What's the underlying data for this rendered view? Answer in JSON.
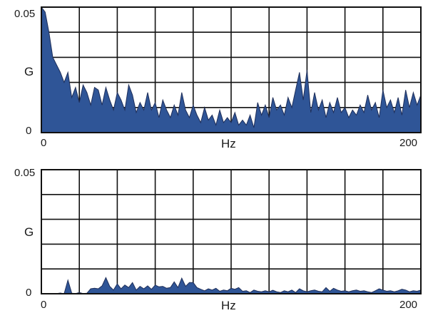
{
  "chart_data": [
    {
      "type": "area",
      "xlabel": "Hz",
      "ylabel": "G",
      "xlim": [
        0,
        200
      ],
      "ylim": [
        0,
        0.05
      ],
      "x_tick_labels": [
        "0",
        "200"
      ],
      "y_tick_labels": [
        "0",
        "0.05"
      ],
      "grid": true,
      "fill_color": "#2f5597",
      "line_color": "#1f2f5a",
      "x": [
        0,
        2,
        4,
        6,
        8,
        10,
        12,
        14,
        16,
        18,
        20,
        22,
        24,
        26,
        28,
        30,
        32,
        34,
        36,
        38,
        40,
        42,
        44,
        46,
        48,
        50,
        52,
        54,
        56,
        58,
        60,
        62,
        64,
        66,
        68,
        70,
        72,
        74,
        76,
        78,
        80,
        82,
        84,
        86,
        88,
        90,
        92,
        94,
        96,
        98,
        100,
        102,
        104,
        106,
        108,
        110,
        112,
        114,
        116,
        118,
        120,
        122,
        124,
        126,
        128,
        130,
        132,
        134,
        136,
        138,
        140,
        142,
        144,
        146,
        148,
        150,
        152,
        154,
        156,
        158,
        160,
        162,
        164,
        166,
        168,
        170,
        172,
        174,
        176,
        178,
        180,
        182,
        184,
        186,
        188,
        190,
        192,
        194,
        196,
        198,
        200
      ],
      "y": [
        0.05,
        0.048,
        0.04,
        0.03,
        0.027,
        0.024,
        0.02,
        0.024,
        0.014,
        0.018,
        0.012,
        0.019,
        0.016,
        0.011,
        0.018,
        0.017,
        0.011,
        0.018,
        0.013,
        0.009,
        0.016,
        0.013,
        0.009,
        0.019,
        0.015,
        0.008,
        0.012,
        0.009,
        0.016,
        0.009,
        0.012,
        0.006,
        0.013,
        0.009,
        0.006,
        0.011,
        0.007,
        0.016,
        0.009,
        0.006,
        0.011,
        0.007,
        0.004,
        0.01,
        0.005,
        0.007,
        0.003,
        0.009,
        0.004,
        0.006,
        0.004,
        0.008,
        0.003,
        0.005,
        0.003,
        0.007,
        0.002,
        0.012,
        0.007,
        0.011,
        0.006,
        0.014,
        0.009,
        0.011,
        0.007,
        0.014,
        0.01,
        0.017,
        0.024,
        0.013,
        0.025,
        0.008,
        0.016,
        0.009,
        0.013,
        0.006,
        0.012,
        0.008,
        0.014,
        0.008,
        0.01,
        0.006,
        0.009,
        0.007,
        0.011,
        0.008,
        0.015,
        0.009,
        0.012,
        0.006,
        0.017,
        0.01,
        0.013,
        0.008,
        0.014,
        0.007,
        0.017,
        0.01,
        0.016,
        0.011,
        0.015
      ]
    },
    {
      "type": "area",
      "xlabel": "Hz",
      "ylabel": "G",
      "xlim": [
        0,
        200
      ],
      "ylim": [
        0,
        0.05
      ],
      "x_tick_labels": [
        "0",
        "200"
      ],
      "y_tick_labels": [
        "0",
        "0.05"
      ],
      "grid": true,
      "fill_color": "#2f5597",
      "line_color": "#1f2f5a",
      "x": [
        0,
        2,
        4,
        6,
        8,
        10,
        12,
        14,
        16,
        18,
        20,
        22,
        24,
        26,
        28,
        30,
        32,
        34,
        36,
        38,
        40,
        42,
        44,
        46,
        48,
        50,
        52,
        54,
        56,
        58,
        60,
        62,
        64,
        66,
        68,
        70,
        72,
        74,
        76,
        78,
        80,
        82,
        84,
        86,
        88,
        90,
        92,
        94,
        96,
        98,
        100,
        102,
        104,
        106,
        108,
        110,
        112,
        114,
        116,
        118,
        120,
        122,
        124,
        126,
        128,
        130,
        132,
        134,
        136,
        138,
        140,
        142,
        144,
        146,
        148,
        150,
        152,
        154,
        156,
        158,
        160,
        162,
        164,
        166,
        168,
        170,
        172,
        174,
        176,
        178,
        180,
        182,
        184,
        186,
        188,
        190,
        192,
        194,
        196,
        198,
        200
      ],
      "y": [
        0,
        0,
        0,
        0,
        0.0001,
        0.0003,
        0,
        0.0055,
        0.0002,
        0.0001,
        0.0005,
        0.0001,
        0.0002,
        0.002,
        0.0022,
        0.002,
        0.0032,
        0.0065,
        0.003,
        0.0015,
        0.004,
        0.002,
        0.0035,
        0.0025,
        0.0045,
        0.0015,
        0.003,
        0.002,
        0.0032,
        0.0018,
        0.0035,
        0.0028,
        0.003,
        0.0022,
        0.0025,
        0.0048,
        0.0025,
        0.0063,
        0.003,
        0.0045,
        0.0045,
        0.0025,
        0.0018,
        0.0012,
        0.002,
        0.0015,
        0.0022,
        0.001,
        0.0015,
        0.0012,
        0.0022,
        0.0018,
        0.0025,
        0.001,
        0.0012,
        0.0005,
        0.0015,
        0.001,
        0.0008,
        0.0012,
        0.0008,
        0.0014,
        0.0008,
        0.0005,
        0.0012,
        0.0008,
        0.0015,
        0.0005,
        0.002,
        0.0012,
        0.0008,
        0.0012,
        0.0015,
        0.001,
        0.0008,
        0.0025,
        0.001,
        0.0022,
        0.0015,
        0.001,
        0.0012,
        0.0008,
        0.0012,
        0.0015,
        0.001,
        0.0012,
        0.0008,
        0.0005,
        0.0012,
        0.002,
        0.0015,
        0.001,
        0.0012,
        0.0008,
        0.0012,
        0.0018,
        0.0015,
        0.0008,
        0.0012,
        0.001,
        0.0015
      ]
    }
  ]
}
